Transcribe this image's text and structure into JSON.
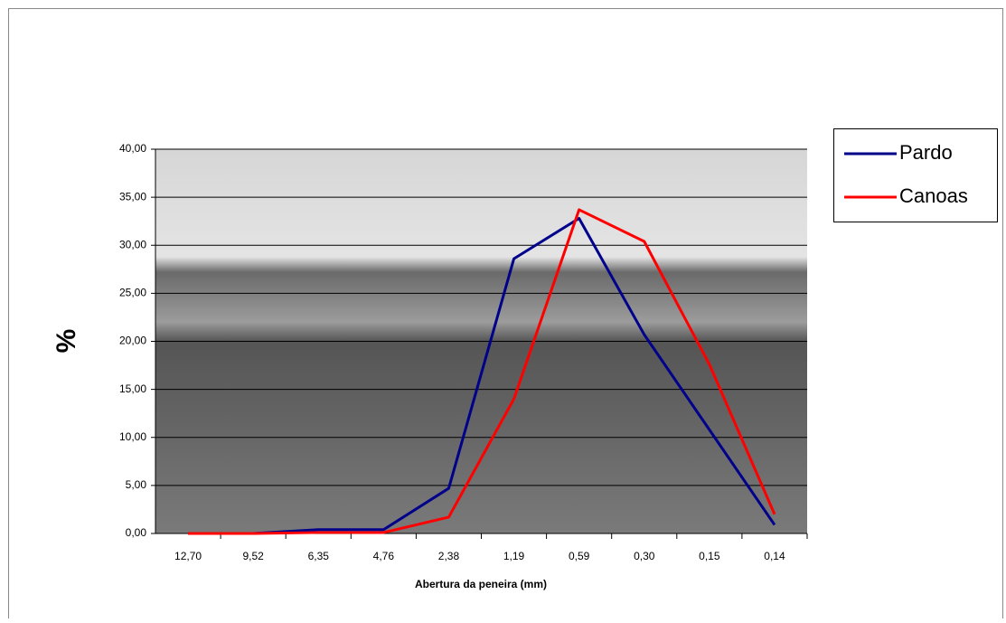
{
  "chart_data": {
    "type": "line",
    "x_label": "Abertura da peneira (mm)",
    "y_label": "%",
    "categories": [
      "12,70",
      "9,52",
      "6,35",
      "4,76",
      "2,38",
      "1,19",
      "0,59",
      "0,30",
      "0,15",
      "0,14"
    ],
    "series": [
      {
        "name": "Pardo",
        "color": "#00008b",
        "values": [
          0,
          0,
          0.4,
          0.4,
          4.7,
          28.6,
          32.8,
          20.7,
          10.8,
          0.9
        ]
      },
      {
        "name": "Canoas",
        "color": "#ff0000",
        "values": [
          0,
          0,
          0.1,
          0.1,
          1.7,
          14.0,
          33.7,
          30.4,
          17.6,
          2.0
        ]
      }
    ],
    "ylim": [
      0,
      40
    ],
    "yticks": [
      {
        "value": 0,
        "label": "0,00"
      },
      {
        "value": 5,
        "label": "5,00"
      },
      {
        "value": 10,
        "label": "10,00"
      },
      {
        "value": 15,
        "label": "15,00"
      },
      {
        "value": 20,
        "label": "20,00"
      },
      {
        "value": 25,
        "label": "25,00"
      },
      {
        "value": 30,
        "label": "30,00"
      },
      {
        "value": 35,
        "label": "35,00"
      },
      {
        "value": 40,
        "label": "40,00"
      }
    ],
    "grid": true,
    "legend": "right"
  }
}
